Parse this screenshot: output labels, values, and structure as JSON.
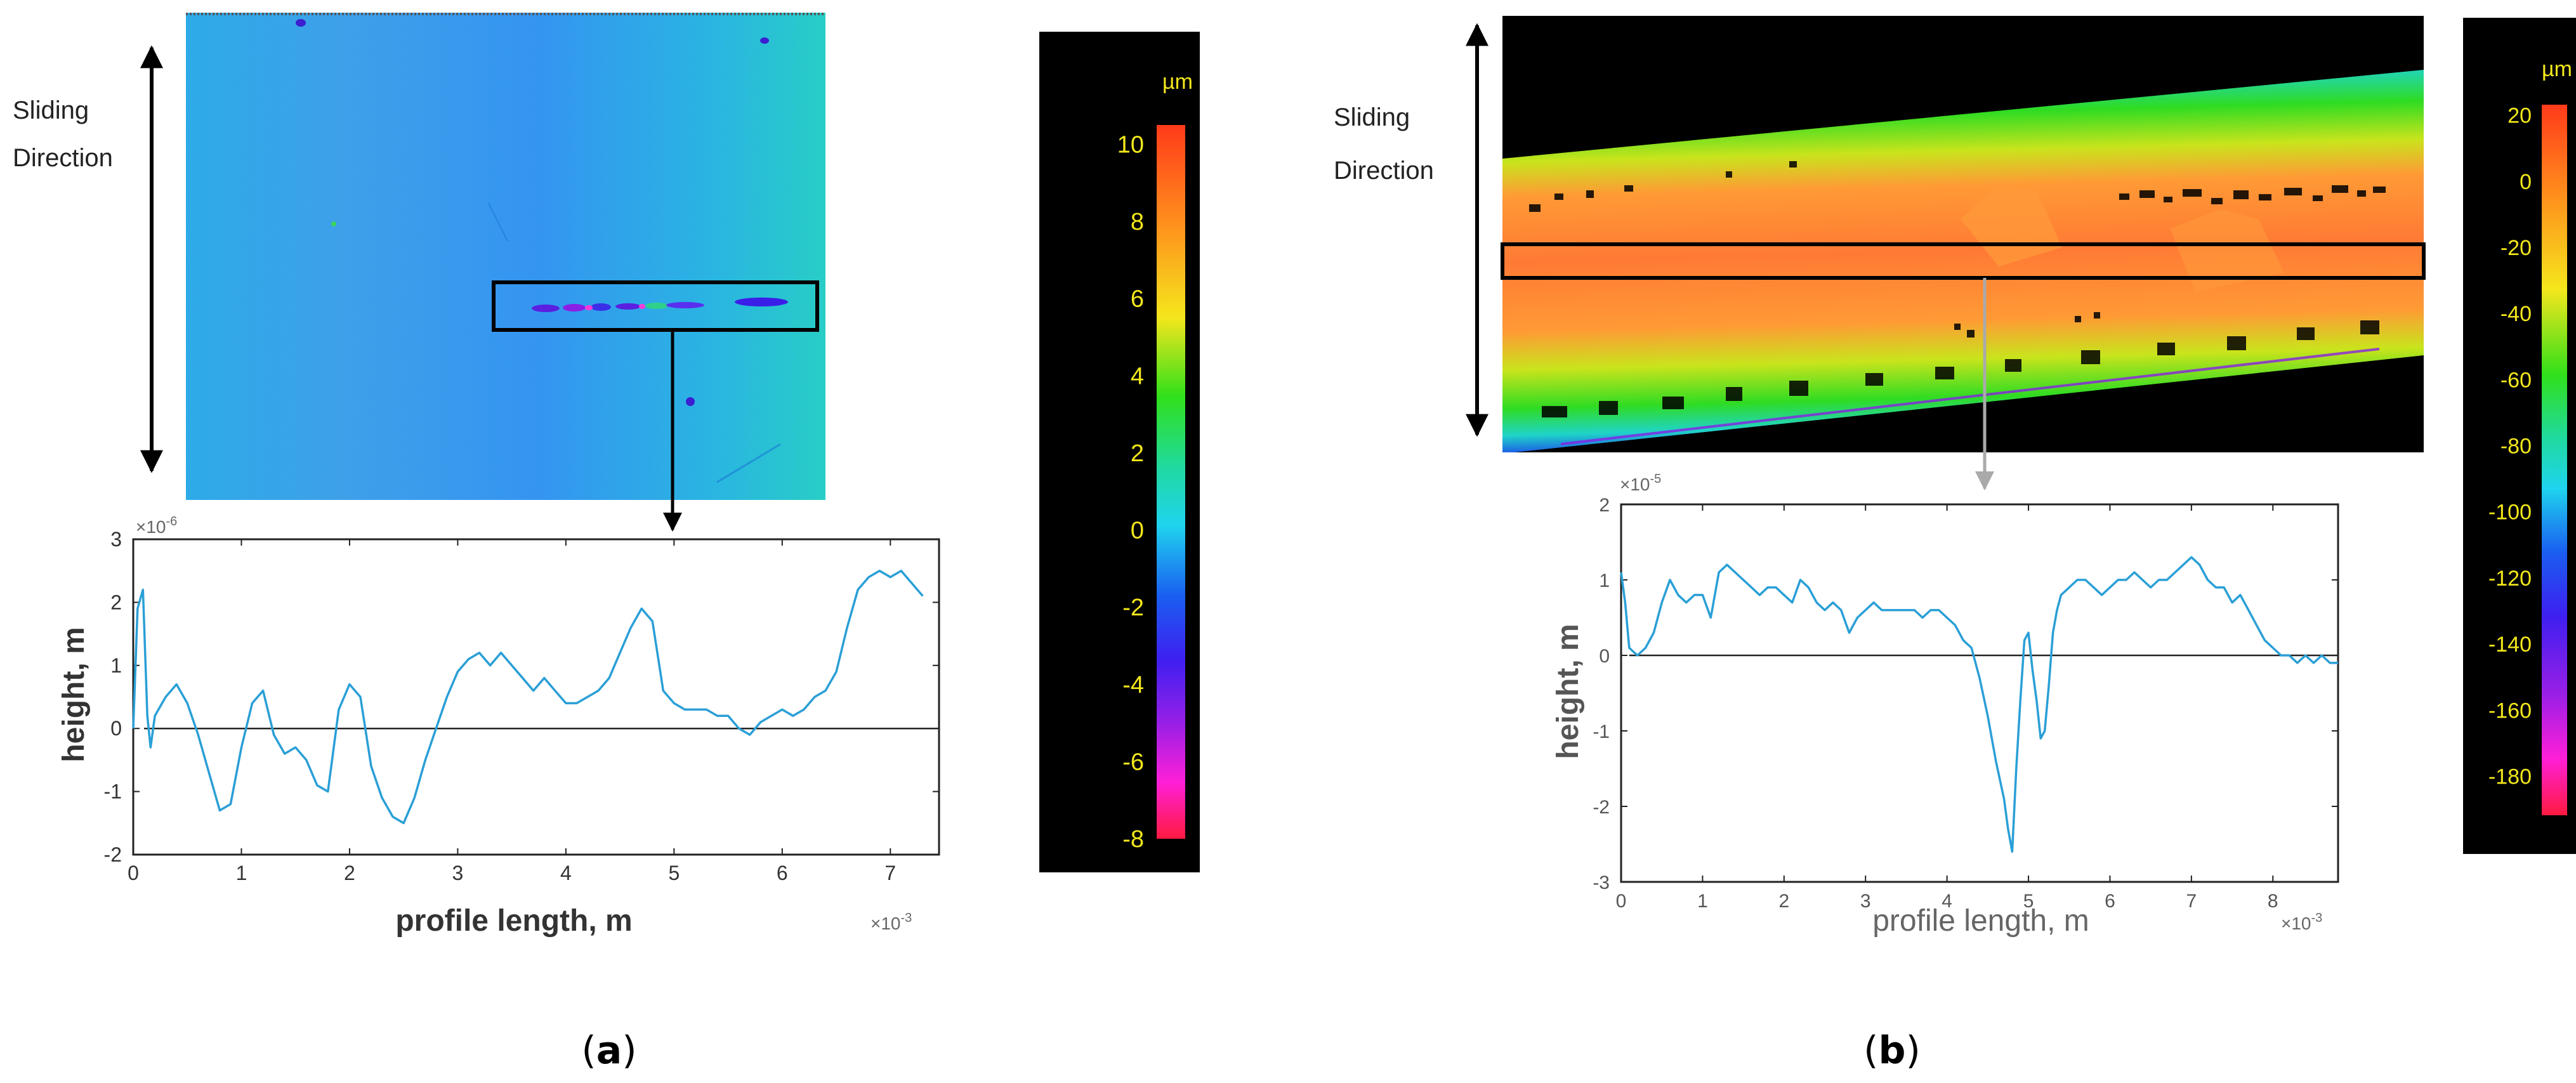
{
  "panels": [
    {
      "id": "a",
      "panel_label_prefix": "(",
      "panel_label_letter": "a",
      "panel_label_suffix": ")",
      "direction_line1": "Sliding",
      "direction_line2": "Direction",
      "colorbar": {
        "unit": "µm",
        "ticks": [
          "10",
          "8",
          "6",
          "4",
          "2",
          "0",
          "-2",
          "-4",
          "-6",
          "-8"
        ],
        "range": [
          -8,
          10.5
        ]
      },
      "chart_data": {
        "type": "line",
        "title": "",
        "xlabel": "profile length, m",
        "ylabel": "height, m",
        "x_multiplier": "×10",
        "x_exponent": "-3",
        "y_multiplier": "×10",
        "y_exponent": "-6",
        "xlim": [
          0,
          7.45
        ],
        "ylim": [
          -2,
          3
        ],
        "xticks": [
          "0",
          "1",
          "2",
          "3",
          "4",
          "5",
          "6",
          "7"
        ],
        "yticks": [
          "3",
          "2",
          "1",
          "0",
          "-1",
          "-2"
        ],
        "reference_line_y": 0,
        "series": [
          {
            "name": "profile",
            "color": "#2a9fd6",
            "x": [
              0,
              0.04,
              0.09,
              0.13,
              0.16,
              0.2,
              0.3,
              0.4,
              0.5,
              0.6,
              0.7,
              0.8,
              0.9,
              1.0,
              1.1,
              1.2,
              1.3,
              1.4,
              1.5,
              1.6,
              1.7,
              1.8,
              1.9,
              2.0,
              2.1,
              2.2,
              2.3,
              2.4,
              2.5,
              2.6,
              2.7,
              2.8,
              2.9,
              3.0,
              3.1,
              3.2,
              3.3,
              3.4,
              3.5,
              3.6,
              3.7,
              3.8,
              3.9,
              4.0,
              4.1,
              4.2,
              4.3,
              4.4,
              4.5,
              4.6,
              4.7,
              4.8,
              4.9,
              5.0,
              5.1,
              5.2,
              5.3,
              5.4,
              5.5,
              5.6,
              5.7,
              5.8,
              5.9,
              6.0,
              6.1,
              6.2,
              6.3,
              6.4,
              6.5,
              6.6,
              6.7,
              6.8,
              6.9,
              7.0,
              7.1,
              7.2,
              7.3
            ],
            "values": [
              0.0,
              1.9,
              2.2,
              0.2,
              -0.3,
              0.2,
              0.5,
              0.7,
              0.4,
              -0.1,
              -0.7,
              -1.3,
              -1.2,
              -0.3,
              0.4,
              0.6,
              -0.1,
              -0.4,
              -0.3,
              -0.5,
              -0.9,
              -1.0,
              0.3,
              0.7,
              0.5,
              -0.6,
              -1.1,
              -1.4,
              -1.5,
              -1.1,
              -0.5,
              0.0,
              0.5,
              0.9,
              1.1,
              1.2,
              1.0,
              1.2,
              1.0,
              0.8,
              0.6,
              0.8,
              0.6,
              0.4,
              0.4,
              0.5,
              0.6,
              0.8,
              1.2,
              1.6,
              1.9,
              1.7,
              0.6,
              0.4,
              0.3,
              0.3,
              0.3,
              0.2,
              0.2,
              0.0,
              -0.1,
              0.1,
              0.2,
              0.3,
              0.2,
              0.3,
              0.5,
              0.6,
              0.9,
              1.6,
              2.2,
              2.4,
              2.5,
              2.4,
              2.5,
              2.3,
              2.1
            ]
          }
        ]
      }
    },
    {
      "id": "b",
      "panel_label_prefix": "(",
      "panel_label_letter": "b",
      "panel_label_suffix": ")",
      "direction_line1": "Sliding",
      "direction_line2": "Direction",
      "colorbar": {
        "unit": "µm",
        "ticks": [
          "20",
          "0",
          "-20",
          "-40",
          "-60",
          "-80",
          "-100",
          "-120",
          "-140",
          "-160",
          "-180"
        ],
        "range": [
          -192,
          23
        ]
      },
      "chart_data": {
        "type": "line",
        "title": "",
        "xlabel": "profile length, m",
        "ylabel": "height, m",
        "x_multiplier": "×10",
        "x_exponent": "-3",
        "y_multiplier": "×10",
        "y_exponent": "-5",
        "xlim": [
          0,
          8.8
        ],
        "ylim": [
          -3,
          2
        ],
        "xticks": [
          "0",
          "1",
          "2",
          "3",
          "4",
          "5",
          "6",
          "7",
          "8"
        ],
        "yticks": [
          "2",
          "1",
          "0",
          "-1",
          "-2",
          "-3"
        ],
        "reference_line_y": 0,
        "series": [
          {
            "name": "profile",
            "color": "#2a9fd6",
            "x": [
              0,
              0.05,
              0.1,
              0.2,
              0.3,
              0.4,
              0.5,
              0.6,
              0.7,
              0.8,
              0.9,
              1.0,
              1.1,
              1.2,
              1.3,
              1.4,
              1.5,
              1.6,
              1.7,
              1.8,
              1.9,
              2.0,
              2.1,
              2.2,
              2.3,
              2.4,
              2.5,
              2.6,
              2.7,
              2.8,
              2.9,
              3.0,
              3.1,
              3.2,
              3.3,
              3.4,
              3.5,
              3.6,
              3.7,
              3.8,
              3.9,
              4.0,
              4.1,
              4.2,
              4.3,
              4.4,
              4.5,
              4.6,
              4.7,
              4.75,
              4.8,
              4.85,
              4.9,
              4.95,
              5.0,
              5.05,
              5.1,
              5.15,
              5.2,
              5.25,
              5.3,
              5.35,
              5.4,
              5.5,
              5.6,
              5.7,
              5.8,
              5.9,
              6.0,
              6.1,
              6.2,
              6.3,
              6.4,
              6.5,
              6.6,
              6.7,
              6.8,
              6.9,
              7.0,
              7.1,
              7.2,
              7.3,
              7.4,
              7.5,
              7.6,
              7.7,
              7.8,
              7.9,
              8.0,
              8.1,
              8.2,
              8.3,
              8.4,
              8.5,
              8.6,
              8.7,
              8.8
            ],
            "values": [
              1.1,
              0.7,
              0.1,
              0.0,
              0.1,
              0.3,
              0.7,
              1.0,
              0.8,
              0.7,
              0.8,
              0.8,
              0.5,
              1.1,
              1.2,
              1.1,
              1.0,
              0.9,
              0.8,
              0.9,
              0.9,
              0.8,
              0.7,
              1.0,
              0.9,
              0.7,
              0.6,
              0.7,
              0.6,
              0.3,
              0.5,
              0.6,
              0.7,
              0.6,
              0.6,
              0.6,
              0.6,
              0.6,
              0.5,
              0.6,
              0.6,
              0.5,
              0.4,
              0.2,
              0.1,
              -0.3,
              -0.8,
              -1.4,
              -1.9,
              -2.3,
              -2.6,
              -1.5,
              -0.6,
              0.2,
              0.3,
              -0.2,
              -0.6,
              -1.1,
              -1.0,
              -0.4,
              0.3,
              0.6,
              0.8,
              0.9,
              1.0,
              1.0,
              0.9,
              0.8,
              0.9,
              1.0,
              1.0,
              1.1,
              1.0,
              0.9,
              1.0,
              1.0,
              1.1,
              1.2,
              1.3,
              1.2,
              1.0,
              0.9,
              0.9,
              0.7,
              0.8,
              0.6,
              0.4,
              0.2,
              0.1,
              0.0,
              0.0,
              -0.1,
              0.0,
              -0.1,
              0.0,
              -0.1,
              -0.1
            ]
          }
        ]
      }
    }
  ]
}
